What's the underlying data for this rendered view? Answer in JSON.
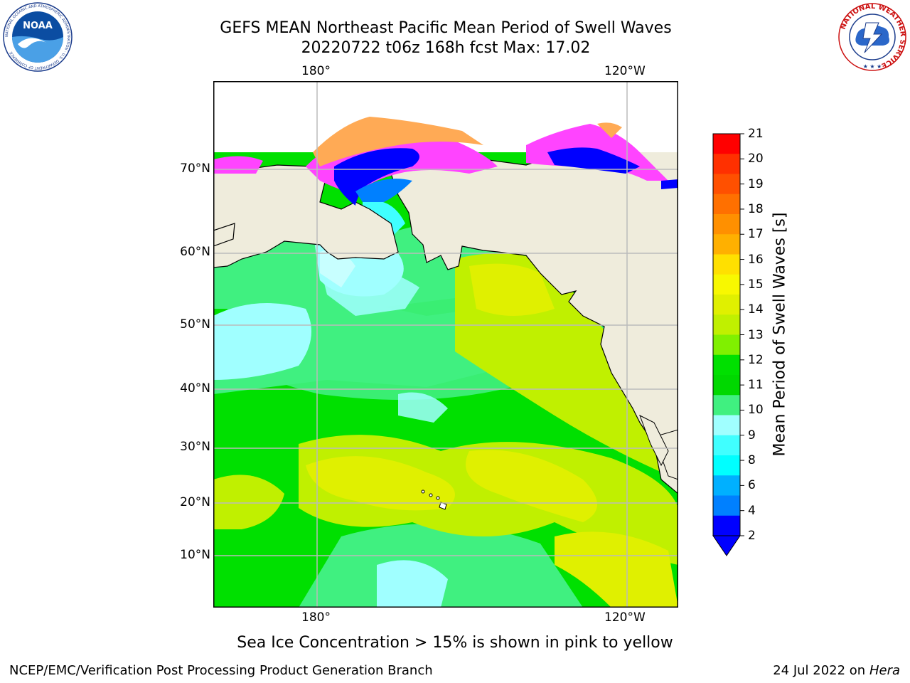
{
  "title": {
    "line1": "GEFS MEAN Northeast Pacific Mean Period of Swell Waves",
    "line2": "20220722 t06z 168h fcst   Max: 17.02"
  },
  "axes": {
    "lon_top": [
      "180°",
      "120°W"
    ],
    "lon_bottom": [
      "180°",
      "120°W"
    ],
    "lat": [
      "70°N",
      "60°N",
      "50°N",
      "40°N",
      "30°N",
      "20°N",
      "10°N"
    ]
  },
  "colorbar": {
    "label": "Mean Period of Swell Waves [s]",
    "ticks": [
      "21",
      "20",
      "19",
      "18",
      "17",
      "16",
      "15",
      "14",
      "13",
      "12",
      "11",
      "10",
      "9",
      "8",
      "6",
      "4",
      "2"
    ],
    "colors": [
      "#ff0000",
      "#ff3000",
      "#ff5000",
      "#ff7000",
      "#ff9000",
      "#ffb000",
      "#ffe000",
      "#f8f800",
      "#e0f000",
      "#c0f000",
      "#80f000",
      "#00e000",
      "#00d800",
      "#40f080",
      "#a0ffff",
      "#40ffff",
      "#00ffff",
      "#00b0ff",
      "#0080ff",
      "#0000ff"
    ],
    "extend_min_color": "#0000ff"
  },
  "colors": {
    "land": "#efecdc",
    "ice_pink": "#ff44ff",
    "ice_orange": "#ffaa55",
    "grid": "#bbbbbb"
  },
  "map": {
    "region": "Northeast Pacific",
    "variable": "Mean Period of Swell Waves",
    "max": 17.02,
    "grid_lons": [
      "180°",
      "120°W"
    ],
    "grid_lats": [
      "70°N",
      "60°N",
      "50°N",
      "40°N",
      "30°N",
      "20°N",
      "10°N"
    ]
  },
  "note": "Sea Ice Concentration > 15% is shown in pink to yellow",
  "footer": {
    "left": "NCEP/EMC/Verification Post Processing Product Generation Branch",
    "date": "24 Jul 2022 on ",
    "host": "Hera"
  },
  "logos": {
    "noaa": "NOAA",
    "noaa_ring": "NATIONAL OCEANIC AND ATMOSPHERIC ADMINISTRATION · U.S. DEPARTMENT OF COMMERCE",
    "nws_ring": "NATIONAL WEATHER SERVICE"
  }
}
